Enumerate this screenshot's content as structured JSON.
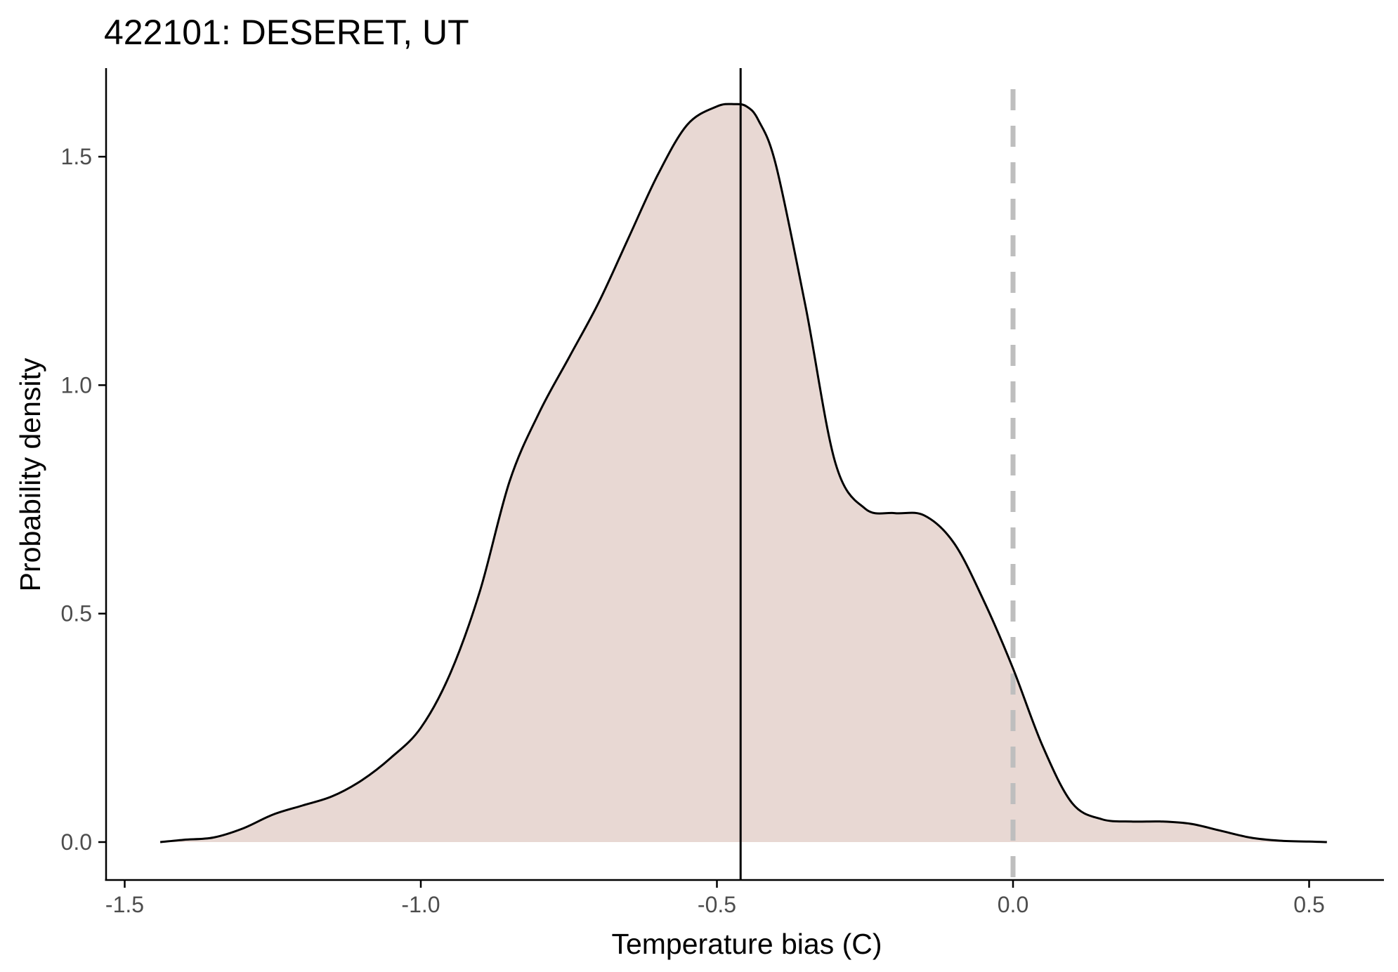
{
  "chart_data": {
    "type": "area",
    "title": "422101: DESERET, UT",
    "xlabel": "Temperature bias (C)",
    "ylabel": "Probability density",
    "xlim": [
      -1.58,
      1.25
    ],
    "ylim": [
      -0.08,
      1.7
    ],
    "x_ticks": [
      {
        "value": -1.5,
        "label": "-1.5"
      },
      {
        "value": -1.0,
        "label": "-1.0"
      },
      {
        "value": -0.5,
        "label": "-0.5"
      },
      {
        "value": 0.0,
        "label": "0.0"
      },
      {
        "value": 0.5,
        "label": "0.5"
      }
    ],
    "y_ticks": [
      {
        "value": 0.0,
        "label": "0.0"
      },
      {
        "value": 0.5,
        "label": "0.5"
      },
      {
        "value": 1.0,
        "label": "1.0"
      },
      {
        "value": 1.5,
        "label": "1.5"
      }
    ],
    "grid": false,
    "fill_color": "#e8d8d3",
    "line_color": "#000000",
    "reference_lines": {
      "mean": {
        "x": -0.46,
        "style": "solid",
        "color": "#000000"
      },
      "zero": {
        "x": 0.0,
        "style": "dashed",
        "color": "#bebebe"
      }
    },
    "x": [
      -1.44,
      -1.4,
      -1.35,
      -1.3,
      -1.25,
      -1.2,
      -1.15,
      -1.1,
      -1.05,
      -1.0,
      -0.95,
      -0.9,
      -0.85,
      -0.8,
      -0.75,
      -0.7,
      -0.65,
      -0.6,
      -0.55,
      -0.5,
      -0.47,
      -0.45,
      -0.43,
      -0.4,
      -0.35,
      -0.3,
      -0.25,
      -0.2,
      -0.15,
      -0.1,
      -0.05,
      0.0,
      0.05,
      0.1,
      0.15,
      0.2,
      0.25,
      0.3,
      0.35,
      0.4,
      0.45,
      0.5,
      0.53
    ],
    "y": [
      0.0,
      0.005,
      0.01,
      0.03,
      0.06,
      0.08,
      0.1,
      0.135,
      0.185,
      0.25,
      0.37,
      0.55,
      0.79,
      0.94,
      1.06,
      1.18,
      1.32,
      1.46,
      1.57,
      1.61,
      1.615,
      1.61,
      1.58,
      1.48,
      1.17,
      0.83,
      0.73,
      0.72,
      0.715,
      0.655,
      0.53,
      0.38,
      0.21,
      0.085,
      0.05,
      0.045,
      0.045,
      0.04,
      0.025,
      0.01,
      0.003,
      0.001,
      0.0
    ]
  }
}
